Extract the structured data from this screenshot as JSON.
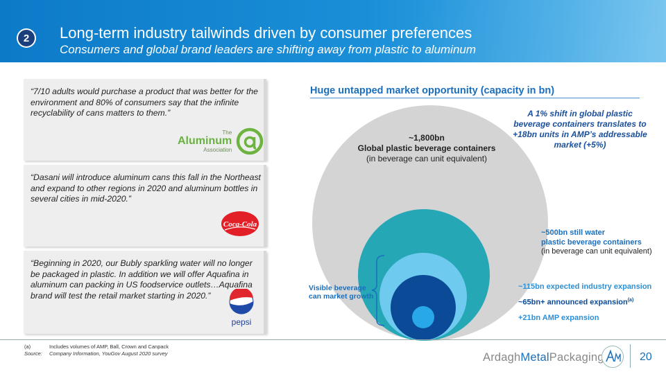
{
  "slide": {
    "number_badge": "2",
    "title": "Long-term industry tailwinds driven by consumer preferences",
    "subtitle": "Consumers and global brand leaders are shifting away from plastic to aluminum",
    "page_number": "20"
  },
  "quotes": [
    {
      "text": "“7/10 adults would purchase a product that was better for the environment and 80% of consumers say that the infinite recyclability of cans matters to them.”"
    },
    {
      "text": "“Dasani will introduce aluminum cans this fall in the Northeast and expand to other regions in 2020 and aluminum bottles in several cities in mid-2020.”"
    },
    {
      "text": "“Beginning in 2020, our Bubly sparkling water will no longer be packaged in plastic. In addition we will offer Aquafina in aluminum can packing in US foodservice outlets…Aquafina brand will test the retail market starting in 2020.”"
    }
  ],
  "logos": {
    "aluminum_association": {
      "the": "The",
      "name": "Aluminum",
      "assoc": "Association",
      "icon": "aluminum-association-a-icon"
    },
    "coca_cola": {
      "name": "Coca-Cola",
      "icon": "coca-cola-logo"
    },
    "pepsi": {
      "name": "pepsi",
      "icon": "pepsi-globe-logo"
    },
    "ardagh": {
      "wordmark_a": "Ardagh",
      "wordmark_b": "Metal",
      "wordmark_c": "Packaging",
      "icon": "amp-monogram-logo"
    }
  },
  "chart": {
    "title": "Huge untapped market opportunity (capacity in bn)",
    "big_circle": {
      "value": "~1,800bn",
      "line2": "Global plastic beverage containers",
      "line3": "(in beverage can unit equivalent)"
    },
    "shift_note": "A 1% shift in global plastic beverage containers translates to +18bn units in AMP’s addressable market (+5%)",
    "water": {
      "line1": "~500bn still water",
      "line2": "plastic beverage containers",
      "line3": "(in beverage can unit equivalent)"
    },
    "expansion_115": "~115bn expected industry expansion",
    "expansion_65": "~65bn+ announced expansion",
    "expansion_65_sup": "(a)",
    "expansion_21": "+21bn AMP expansion",
    "visible_growth": {
      "line1": "Visible beverage",
      "line2": "can market growth"
    },
    "colors": {
      "big": "#d4d4d4",
      "water": "#25a7b6",
      "expected": "#6fcaf0",
      "announced": "#0b4a97",
      "amp": "#28a8e8"
    }
  },
  "chart_data": {
    "type": "nested-bubble",
    "title": "Huge untapped market opportunity (capacity in bn)",
    "circles": [
      {
        "label": "Global plastic beverage containers",
        "value": 1800
      },
      {
        "label": "Still water plastic beverage containers",
        "value": 500
      },
      {
        "label": "Expected industry expansion",
        "value": 115
      },
      {
        "label": "Announced expansion",
        "value": 65
      },
      {
        "label": "AMP expansion",
        "value": 21
      }
    ]
  },
  "footnotes": [
    {
      "key": "(a)",
      "text": "Includes volumes of AMP, Ball, Crown and Canpack"
    },
    {
      "key": "Source:",
      "text": "Company Information, YouGov August 2020 survey"
    }
  ]
}
